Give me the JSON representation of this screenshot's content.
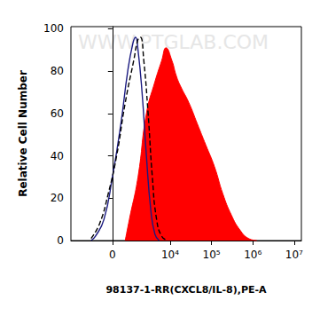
{
  "chart_data": {
    "type": "line",
    "x_label": "98137-1-RR(CXCL8/IL-8),PE-A",
    "y_label": "Relative Cell Number",
    "annotations": [
      {
        "text": "WWW.PTGLAB.COM"
      }
    ],
    "log": "x",
    "grid": false,
    "xlim": [
      -4000,
      15000000
    ],
    "xticks": [
      0,
      {
        "value": 10000,
        "label": "10⁴"
      },
      {
        "value": 100000,
        "label": "10⁵"
      },
      {
        "value": 1000000,
        "label": "10⁶"
      },
      {
        "value": 10000000,
        "label": "10⁷"
      }
    ],
    "ylim": [
      0,
      101
    ],
    "yticks": [
      0,
      20,
      40,
      60,
      80,
      100
    ],
    "series": [
      {
        "type": "area",
        "color": "#ff0000",
        "line_style": "solid",
        "x": [
          620,
          875,
          1570,
          2600,
          4240,
          6220,
          7900,
          11000,
          13960,
          17700,
          28500,
          45700,
          73300,
          117600,
          189000,
          304000,
          488000,
          784000,
          1260000
        ],
        "values": [
          0,
          10,
          30,
          60,
          75,
          85,
          91,
          85,
          78,
          73,
          65,
          55,
          45,
          35,
          22,
          12,
          5,
          1,
          0
        ]
      },
      {
        "type": "line",
        "color": "#1a1a80",
        "line_style": "solid",
        "x": [
          -1190,
          -875,
          -390,
          0,
          390,
          770,
          1120,
          1340,
          1570,
          2010,
          2600,
          3330,
          4240,
          5380
        ],
        "values": [
          0,
          2,
          10,
          30,
          55,
          80,
          93,
          96,
          90,
          70,
          40,
          15,
          3,
          0
        ]
      },
      {
        "type": "line",
        "color": "#000000",
        "line_style": "dashed",
        "x": [
          -1190,
          -620,
          -190,
          190,
          620,
          1190,
          1570,
          1820,
          2230,
          2870,
          3660,
          4660,
          6220,
          8680
        ],
        "values": [
          1,
          8,
          22,
          40,
          65,
          85,
          95,
          96,
          85,
          60,
          30,
          10,
          2,
          0
        ]
      }
    ]
  }
}
